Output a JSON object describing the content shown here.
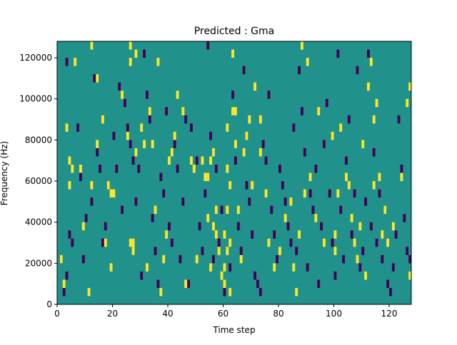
{
  "chart_data": {
    "type": "heatmap",
    "title": "Predicted : Gma",
    "xlabel": "Time step",
    "ylabel": "Frequency (Hz)",
    "xlim": [
      0,
      128
    ],
    "ylim": [
      0,
      128000
    ],
    "x_ticks": [
      0,
      20,
      40,
      60,
      80,
      100,
      120
    ],
    "y_ticks": [
      0,
      20000,
      40000,
      60000,
      80000,
      100000,
      120000
    ],
    "y_tick_labels": [
      "0",
      "20000",
      "40000",
      "60000",
      "80000",
      "100000",
      "120000"
    ],
    "grid": false,
    "colormap": {
      "background": "#21918c",
      "high": "#fde725",
      "low": "#440154"
    },
    "note_cell_height_hz": 4000,
    "cells": {
      "high": [
        [
          1,
          20000
        ],
        [
          2,
          8000
        ],
        [
          3,
          84000
        ],
        [
          4,
          68000
        ],
        [
          4,
          56000
        ],
        [
          5,
          64000
        ],
        [
          6,
          116000
        ],
        [
          8,
          64000
        ],
        [
          9,
          36000
        ],
        [
          11,
          4000
        ],
        [
          12,
          124000
        ],
        [
          12,
          56000
        ],
        [
          14,
          76000
        ],
        [
          14,
          108000
        ],
        [
          16,
          88000
        ],
        [
          17,
          28000
        ],
        [
          18,
          56000
        ],
        [
          19,
          52000
        ],
        [
          19,
          16000
        ],
        [
          20,
          52000
        ],
        [
          23,
          100000
        ],
        [
          25,
          80000
        ],
        [
          26,
          124000
        ],
        [
          26,
          116000
        ],
        [
          26,
          28000
        ],
        [
          27,
          28000
        ],
        [
          27,
          24000
        ],
        [
          28,
          120000
        ],
        [
          28,
          72000
        ],
        [
          30,
          84000
        ],
        [
          31,
          76000
        ],
        [
          32,
          16000
        ],
        [
          33,
          92000
        ],
        [
          34,
          76000
        ],
        [
          35,
          44000
        ],
        [
          36,
          116000
        ],
        [
          37,
          4000
        ],
        [
          38,
          20000
        ],
        [
          39,
          32000
        ],
        [
          40,
          68000
        ],
        [
          41,
          72000
        ],
        [
          42,
          80000
        ],
        [
          43,
          100000
        ],
        [
          45,
          92000
        ],
        [
          46,
          8000
        ],
        [
          48,
          68000
        ],
        [
          49,
          64000
        ],
        [
          50,
          20000
        ],
        [
          52,
          68000
        ],
        [
          53,
          60000
        ],
        [
          54,
          60000
        ],
        [
          54,
          40000
        ],
        [
          55,
          68000
        ],
        [
          55,
          16000
        ],
        [
          56,
          72000
        ],
        [
          56,
          36000
        ],
        [
          57,
          44000
        ],
        [
          57,
          32000
        ],
        [
          58,
          24000
        ],
        [
          59,
          12000
        ],
        [
          60,
          32000
        ],
        [
          60,
          16000
        ],
        [
          60,
          8000
        ],
        [
          61,
          84000
        ],
        [
          61,
          64000
        ],
        [
          61,
          44000
        ],
        [
          61,
          24000
        ],
        [
          62,
          56000
        ],
        [
          62,
          28000
        ],
        [
          62,
          4000
        ],
        [
          63,
          120000
        ],
        [
          63,
          92000
        ],
        [
          64,
          76000
        ],
        [
          64,
          92000
        ],
        [
          65,
          44000
        ],
        [
          66,
          20000
        ],
        [
          67,
          72000
        ],
        [
          68,
          80000
        ],
        [
          69,
          88000
        ],
        [
          70,
          56000
        ],
        [
          71,
          104000
        ],
        [
          73,
          72000
        ],
        [
          73,
          88000
        ],
        [
          75,
          52000
        ],
        [
          76,
          28000
        ],
        [
          78,
          16000
        ],
        [
          80,
          24000
        ],
        [
          82,
          40000
        ],
        [
          84,
          48000
        ],
        [
          85,
          16000
        ],
        [
          86,
          4000
        ],
        [
          87,
          32000
        ],
        [
          88,
          124000
        ],
        [
          89,
          52000
        ],
        [
          90,
          116000
        ],
        [
          91,
          60000
        ],
        [
          93,
          40000
        ],
        [
          94,
          92000
        ],
        [
          96,
          28000
        ],
        [
          99,
          80000
        ],
        [
          100,
          32000
        ],
        [
          100,
          24000
        ],
        [
          101,
          52000
        ],
        [
          102,
          84000
        ],
        [
          104,
          60000
        ],
        [
          105,
          56000
        ],
        [
          106,
          40000
        ],
        [
          107,
          28000
        ],
        [
          108,
          20000
        ],
        [
          109,
          36000
        ],
        [
          110,
          76000
        ],
        [
          111,
          12000
        ],
        [
          112,
          104000
        ],
        [
          113,
          116000
        ],
        [
          114,
          56000
        ],
        [
          114,
          88000
        ],
        [
          115,
          96000
        ],
        [
          116,
          60000
        ],
        [
          117,
          32000
        ],
        [
          118,
          44000
        ],
        [
          119,
          28000
        ],
        [
          121,
          36000
        ],
        [
          124,
          60000
        ],
        [
          126,
          96000
        ],
        [
          127,
          104000
        ],
        [
          127,
          12000
        ]
      ],
      "low": [
        [
          1,
          20000
        ],
        [
          2,
          4000
        ],
        [
          3,
          116000
        ],
        [
          3,
          12000
        ],
        [
          4,
          32000
        ],
        [
          5,
          28000
        ],
        [
          7,
          84000
        ],
        [
          8,
          60000
        ],
        [
          9,
          20000
        ],
        [
          10,
          40000
        ],
        [
          12,
          48000
        ],
        [
          13,
          108000
        ],
        [
          14,
          72000
        ],
        [
          15,
          64000
        ],
        [
          16,
          28000
        ],
        [
          17,
          36000
        ],
        [
          18,
          56000
        ],
        [
          20,
          80000
        ],
        [
          21,
          64000
        ],
        [
          22,
          104000
        ],
        [
          23,
          44000
        ],
        [
          24,
          96000
        ],
        [
          25,
          84000
        ],
        [
          26,
          76000
        ],
        [
          27,
          68000
        ],
        [
          28,
          48000
        ],
        [
          29,
          64000
        ],
        [
          30,
          12000
        ],
        [
          31,
          120000
        ],
        [
          32,
          100000
        ],
        [
          33,
          88000
        ],
        [
          34,
          40000
        ],
        [
          35,
          24000
        ],
        [
          36,
          8000
        ],
        [
          37,
          60000
        ],
        [
          38,
          52000
        ],
        [
          39,
          92000
        ],
        [
          40,
          36000
        ],
        [
          41,
          28000
        ],
        [
          42,
          76000
        ],
        [
          43,
          64000
        ],
        [
          44,
          20000
        ],
        [
          45,
          48000
        ],
        [
          46,
          88000
        ],
        [
          47,
          8000
        ],
        [
          48,
          84000
        ],
        [
          50,
          68000
        ],
        [
          51,
          36000
        ],
        [
          52,
          24000
        ],
        [
          53,
          52000
        ],
        [
          54,
          124000
        ],
        [
          55,
          80000
        ],
        [
          56,
          20000
        ],
        [
          57,
          64000
        ],
        [
          58,
          28000
        ],
        [
          59,
          44000
        ],
        [
          60,
          4000
        ],
        [
          62,
          16000
        ],
        [
          63,
          100000
        ],
        [
          64,
          68000
        ],
        [
          65,
          36000
        ],
        [
          66,
          24000
        ],
        [
          67,
          112000
        ],
        [
          68,
          56000
        ],
        [
          69,
          48000
        ],
        [
          70,
          32000
        ],
        [
          71,
          12000
        ],
        [
          72,
          8000
        ],
        [
          73,
          4000
        ],
        [
          74,
          76000
        ],
        [
          75,
          68000
        ],
        [
          76,
          100000
        ],
        [
          77,
          44000
        ],
        [
          78,
          32000
        ],
        [
          79,
          20000
        ],
        [
          80,
          64000
        ],
        [
          81,
          56000
        ],
        [
          82,
          48000
        ],
        [
          83,
          36000
        ],
        [
          84,
          28000
        ],
        [
          85,
          84000
        ],
        [
          86,
          24000
        ],
        [
          87,
          112000
        ],
        [
          88,
          92000
        ],
        [
          89,
          72000
        ],
        [
          90,
          16000
        ],
        [
          91,
          52000
        ],
        [
          92,
          44000
        ],
        [
          93,
          64000
        ],
        [
          94,
          8000
        ],
        [
          95,
          36000
        ],
        [
          96,
          76000
        ],
        [
          97,
          96000
        ],
        [
          98,
          52000
        ],
        [
          99,
          28000
        ],
        [
          100,
          12000
        ],
        [
          101,
          120000
        ],
        [
          102,
          44000
        ],
        [
          103,
          20000
        ],
        [
          104,
          68000
        ],
        [
          105,
          88000
        ],
        [
          106,
          32000
        ],
        [
          107,
          52000
        ],
        [
          108,
          112000
        ],
        [
          109,
          16000
        ],
        [
          110,
          24000
        ],
        [
          111,
          48000
        ],
        [
          112,
          120000
        ],
        [
          113,
          36000
        ],
        [
          114,
          72000
        ],
        [
          115,
          28000
        ],
        [
          116,
          52000
        ],
        [
          117,
          20000
        ],
        [
          118,
          44000
        ],
        [
          119,
          8000
        ],
        [
          120,
          4000
        ],
        [
          121,
          16000
        ],
        [
          122,
          32000
        ],
        [
          123,
          88000
        ],
        [
          124,
          64000
        ],
        [
          125,
          40000
        ],
        [
          126,
          24000
        ],
        [
          127,
          20000
        ]
      ]
    }
  }
}
